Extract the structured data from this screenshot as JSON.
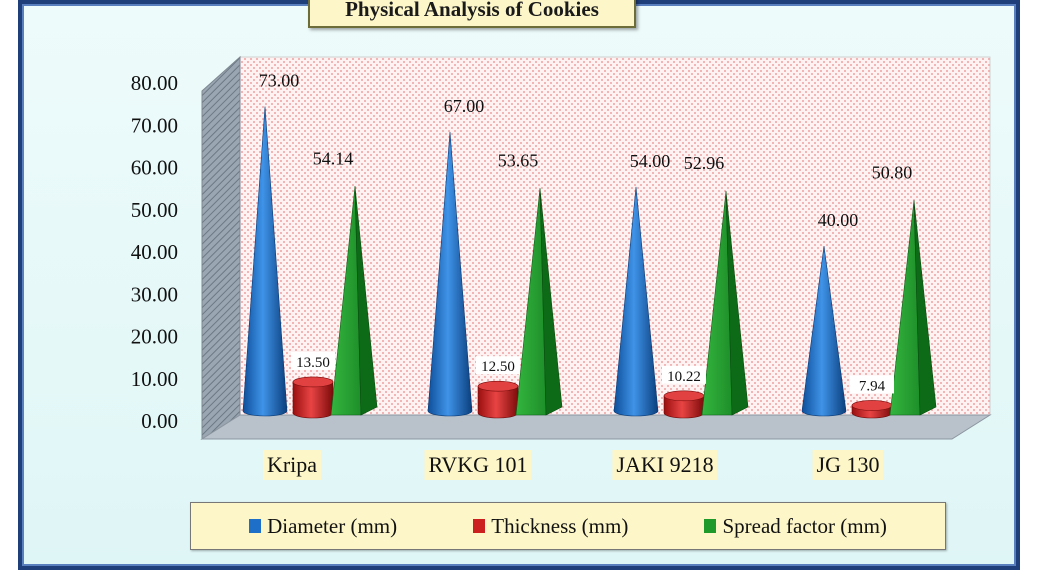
{
  "chart_data": {
    "type": "bar",
    "title": "Physical Analysis of Cookies",
    "categories": [
      "Kripa",
      "RVKG 101",
      "JAKI 9218",
      "JG 130"
    ],
    "series": [
      {
        "name": "Diameter (mm)",
        "values": [
          73.0,
          67.0,
          54.0,
          40.0
        ],
        "color": "#1e6fc8",
        "shape": "cone"
      },
      {
        "name": "Thickness (mm)",
        "values": [
          13.5,
          12.5,
          10.22,
          7.94
        ],
        "color": "#cc1f1f",
        "shape": "cylinder"
      },
      {
        "name": "Spread factor (mm)",
        "values": [
          54.14,
          53.65,
          52.96,
          50.8
        ],
        "color": "#1e9a2a",
        "shape": "pyramid"
      }
    ],
    "data_labels": [
      [
        "73.00",
        "67.00",
        "54.00",
        "40.00"
      ],
      [
        "13.50",
        "12.50",
        "10.22",
        "7.94"
      ],
      [
        "54.14",
        "53.65",
        "52.96",
        "50.80"
      ]
    ],
    "ylim": [
      0,
      80
    ],
    "yticks": [
      "0.00",
      "10.00",
      "20.00",
      "30.00",
      "40.00",
      "50.00",
      "60.00",
      "70.00",
      "80.00"
    ],
    "xlabel": "",
    "ylabel": "",
    "grid": false,
    "legend_position": "bottom"
  },
  "colors": {
    "frame_border": "#1f3f7a",
    "plot_background": "#fbe3e3",
    "label_background": "#fdf6c8"
  }
}
